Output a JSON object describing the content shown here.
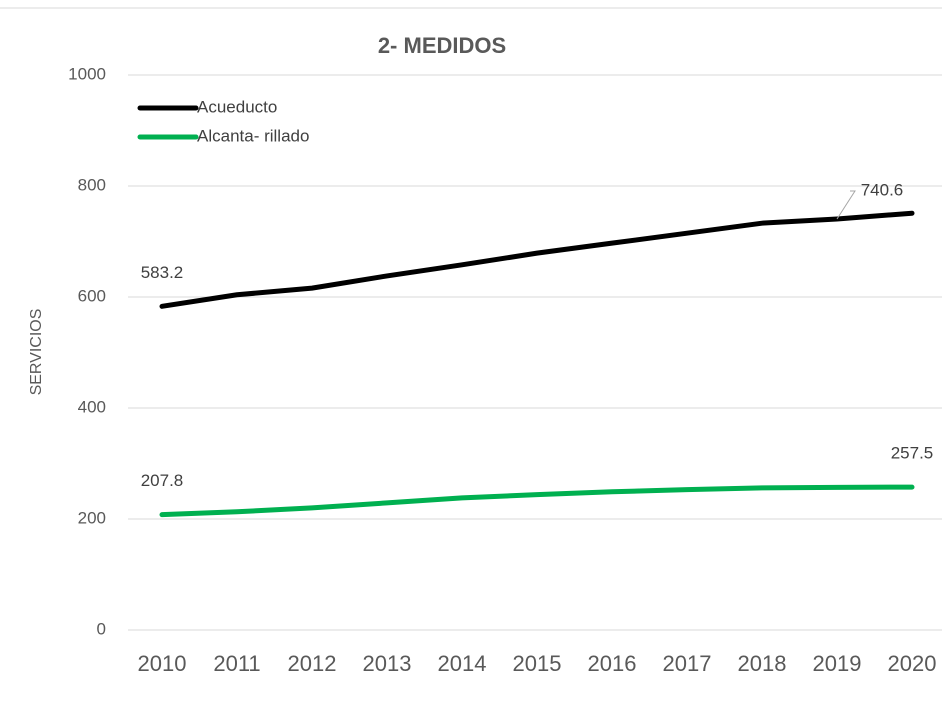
{
  "chart_data": {
    "type": "line",
    "title": "2- MEDIDOS",
    "y_label": "SERVICIOS",
    "categories": [
      "2010",
      "2011",
      "2012",
      "2013",
      "2014",
      "2015",
      "2016",
      "2017",
      "2018",
      "2019",
      "2020"
    ],
    "series": [
      {
        "name": "Acueducto",
        "color": "#000000",
        "values": [
          583.2,
          604,
          616,
          638,
          658,
          679,
          697,
          715,
          733,
          740.6,
          751
        ],
        "value_labels": [
          "583.2",
          null,
          null,
          null,
          null,
          null,
          null,
          null,
          null,
          "740.6",
          null
        ]
      },
      {
        "name": "Alcanta- rillado",
        "color": "#00b050",
        "values": [
          207.8,
          213,
          220,
          229,
          238,
          244,
          249,
          253,
          256,
          257,
          257.5
        ],
        "value_labels": [
          "207.8",
          null,
          null,
          null,
          null,
          null,
          null,
          null,
          null,
          null,
          "257.5"
        ]
      }
    ],
    "ylim": [
      0,
      1000
    ],
    "yticks": [
      0,
      200,
      400,
      600,
      800,
      1000
    ],
    "grid": true,
    "legend": "upper left"
  }
}
